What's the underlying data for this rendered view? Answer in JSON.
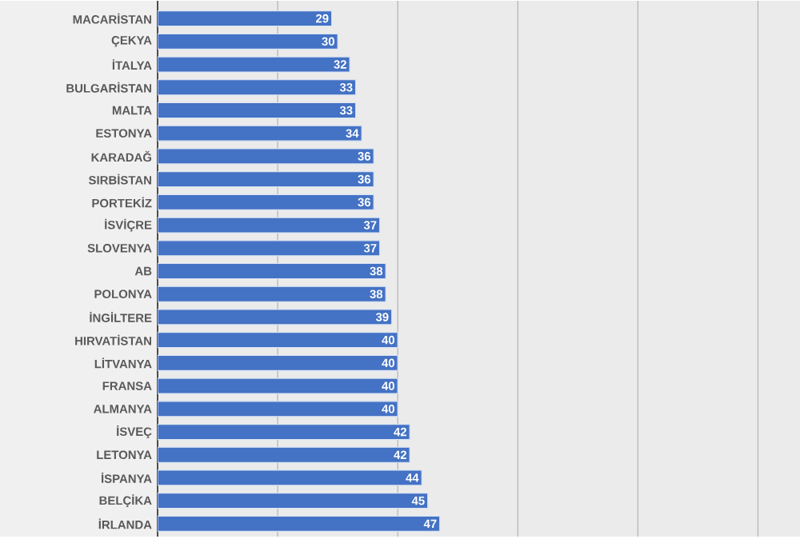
{
  "chart_data": {
    "type": "bar",
    "orientation": "horizontal",
    "categories": [
      "MACARİSTAN",
      "ÇEKYA",
      "İTALYA",
      "BULGARİSTAN",
      "MALTA",
      "ESTONYA",
      "KARADAĞ",
      "SIRBİSTAN",
      "PORTEKİZ",
      "İSVİÇRE",
      "SLOVENYA",
      "AB",
      "POLONYA",
      "İNGİLTERE",
      "HIRVATİSTAN",
      "LİTVANYA",
      "FRANSA",
      "ALMANYA",
      "İSVEÇ",
      "LETONYA",
      "İSPANYA",
      "BELÇİKA",
      "İRLANDA"
    ],
    "values": [
      29,
      30,
      32,
      33,
      33,
      34,
      36,
      36,
      36,
      37,
      37,
      38,
      38,
      39,
      40,
      40,
      40,
      40,
      42,
      42,
      44,
      45,
      47
    ],
    "color": "#4472c4",
    "xlim": [
      0,
      107
    ],
    "xticks": [
      {
        "value": 0,
        "label": null
      },
      {
        "value": 20,
        "label": null
      },
      {
        "value": 40,
        "label": null
      },
      {
        "value": 60,
        "label": null
      },
      {
        "value": 80,
        "label": null
      },
      {
        "value": 100,
        "label": null
      }
    ],
    "tick_labels": "y",
    "grid": "x",
    "data_labels": true
  }
}
